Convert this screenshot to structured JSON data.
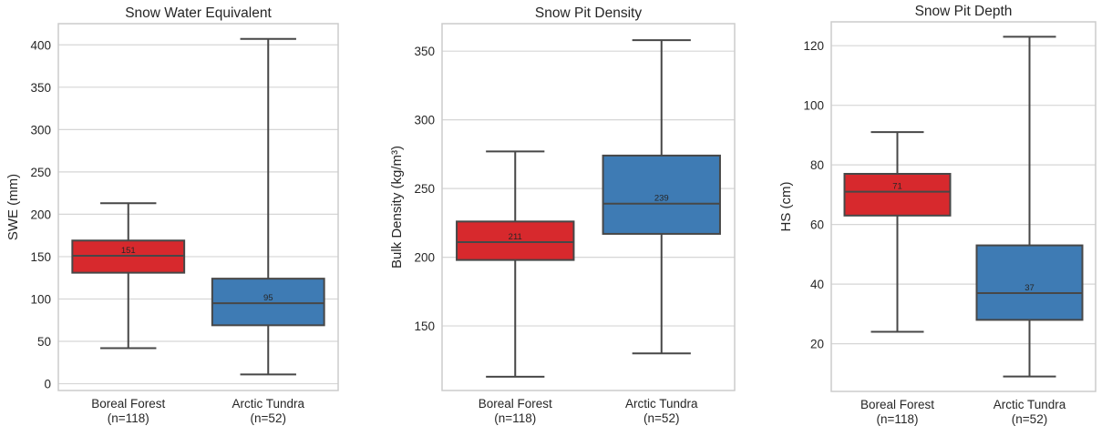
{
  "colors": {
    "boreal": "#d7292d",
    "tundra": "#3e7bb4",
    "line": "#474747",
    "grid": "#d6d6d6",
    "frame": "#cccccc"
  },
  "chart_data": [
    {
      "type": "box",
      "title": "Snow Water Equivalent",
      "ylabel": "SWE (mm)",
      "ylim": [
        -8,
        425
      ],
      "yticks": [
        0,
        50,
        100,
        150,
        200,
        250,
        300,
        350,
        400
      ],
      "grid": true,
      "categories": [
        {
          "name": "Boreal Forest",
          "n_label": "(n=118)",
          "color_key": "boreal",
          "whisker_low": 42,
          "q1": 131,
          "median": 151,
          "q3": 169,
          "whisker_high": 213,
          "median_label": "151"
        },
        {
          "name": "Arctic Tundra",
          "n_label": "(n=52)",
          "color_key": "tundra",
          "whisker_low": 11,
          "q1": 69,
          "median": 95,
          "q3": 124,
          "whisker_high": 407,
          "median_label": "95"
        }
      ]
    },
    {
      "type": "box",
      "title": "Snow Pit Density",
      "ylabel": "Bulk Density (kg/m³)",
      "ylim": [
        103,
        370
      ],
      "yticks": [
        150,
        200,
        250,
        300,
        350
      ],
      "grid": true,
      "categories": [
        {
          "name": "Boreal Forest",
          "n_label": "(n=118)",
          "color_key": "boreal",
          "whisker_low": 113,
          "q1": 198,
          "median": 211,
          "q3": 226,
          "whisker_high": 277,
          "median_label": "211"
        },
        {
          "name": "Arctic Tundra",
          "n_label": "(n=52)",
          "color_key": "tundra",
          "whisker_low": 130,
          "q1": 217,
          "median": 239,
          "q3": 274,
          "whisker_high": 358,
          "median_label": "239"
        }
      ]
    },
    {
      "type": "box",
      "title": "Snow Pit Depth",
      "ylabel": "HS (cm)",
      "ylim": [
        4,
        128
      ],
      "yticks": [
        20,
        40,
        60,
        80,
        100,
        120
      ],
      "grid": true,
      "categories": [
        {
          "name": "Boreal Forest",
          "n_label": "(n=118)",
          "color_key": "boreal",
          "whisker_low": 24,
          "q1": 63,
          "median": 71,
          "q3": 77,
          "whisker_high": 91,
          "median_label": "71"
        },
        {
          "name": "Arctic Tundra",
          "n_label": "(n=52)",
          "color_key": "tundra",
          "whisker_low": 9,
          "q1": 28,
          "median": 37,
          "q3": 53,
          "whisker_high": 123,
          "median_label": "37"
        }
      ]
    }
  ]
}
